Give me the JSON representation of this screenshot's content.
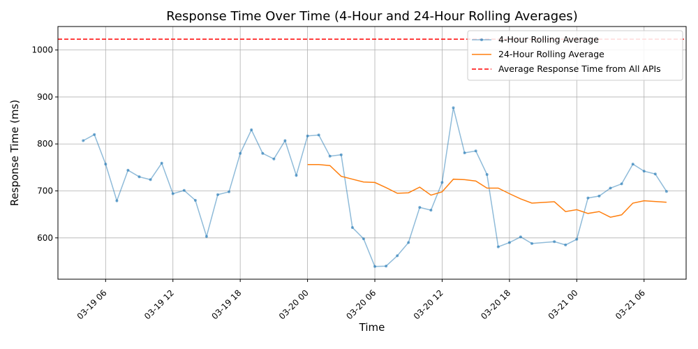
{
  "chart_data": {
    "type": "line",
    "title": "Response Time Over Time (4-Hour and 24-Hour Rolling Averages)",
    "xlabel": "Time",
    "ylabel": "Response Time (ms)",
    "x_ticks": [
      "03-19 06",
      "03-19 12",
      "03-19 18",
      "03-20 00",
      "03-20 06",
      "03-20 12",
      "03-20 18",
      "03-21 00",
      "03-21 06"
    ],
    "y_ticks": [
      600,
      700,
      800,
      900,
      1000
    ],
    "xlim": [
      "2024-03-19T01:45",
      "2024-03-21T09:45"
    ],
    "ylim": [
      512,
      1050
    ],
    "grid": true,
    "legend_position": "top-right",
    "series": [
      {
        "name": "4-Hour Rolling Average",
        "color": "#1f77b4",
        "style": "line-with-markers",
        "points": [
          [
            "2024-03-19T04:00",
            807
          ],
          [
            "2024-03-19T05:00",
            820
          ],
          [
            "2024-03-19T06:00",
            757
          ],
          [
            "2024-03-19T07:00",
            679
          ],
          [
            "2024-03-19T08:00",
            744
          ],
          [
            "2024-03-19T09:00",
            730
          ],
          [
            "2024-03-19T10:00",
            724
          ],
          [
            "2024-03-19T11:00",
            759
          ],
          [
            "2024-03-19T12:00",
            694
          ],
          [
            "2024-03-19T13:00",
            701
          ],
          [
            "2024-03-19T14:00",
            680
          ],
          [
            "2024-03-19T15:00",
            603
          ],
          [
            "2024-03-19T16:00",
            692
          ],
          [
            "2024-03-19T17:00",
            698
          ],
          [
            "2024-03-19T18:00",
            780
          ],
          [
            "2024-03-19T19:00",
            830
          ],
          [
            "2024-03-19T20:00",
            780
          ],
          [
            "2024-03-19T21:00",
            768
          ],
          [
            "2024-03-19T22:00",
            807
          ],
          [
            "2024-03-19T23:00",
            733
          ],
          [
            "2024-03-20T00:00",
            817
          ],
          [
            "2024-03-20T01:00",
            819
          ],
          [
            "2024-03-20T02:00",
            774
          ],
          [
            "2024-03-20T03:00",
            777
          ],
          [
            "2024-03-20T04:00",
            622
          ],
          [
            "2024-03-20T05:00",
            598
          ],
          [
            "2024-03-20T06:00",
            539
          ],
          [
            "2024-03-20T07:00",
            540
          ],
          [
            "2024-03-20T08:00",
            562
          ],
          [
            "2024-03-20T09:00",
            590
          ],
          [
            "2024-03-20T10:00",
            665
          ],
          [
            "2024-03-20T11:00",
            659
          ],
          [
            "2024-03-20T12:00",
            718
          ],
          [
            "2024-03-20T13:00",
            877
          ],
          [
            "2024-03-20T14:00",
            781
          ],
          [
            "2024-03-20T15:00",
            785
          ],
          [
            "2024-03-20T16:00",
            735
          ],
          [
            "2024-03-20T17:00",
            581
          ],
          [
            "2024-03-20T18:00",
            590
          ],
          [
            "2024-03-20T19:00",
            602
          ],
          [
            "2024-03-20T20:00",
            588
          ],
          [
            "2024-03-20T22:00",
            592
          ],
          [
            "2024-03-20T23:00",
            585
          ],
          [
            "2024-03-21T00:00",
            597
          ],
          [
            "2024-03-21T01:00",
            685
          ],
          [
            "2024-03-21T02:00",
            689
          ],
          [
            "2024-03-21T03:00",
            706
          ],
          [
            "2024-03-21T04:00",
            715
          ],
          [
            "2024-03-21T05:00",
            757
          ],
          [
            "2024-03-21T06:00",
            742
          ],
          [
            "2024-03-21T07:00",
            736
          ],
          [
            "2024-03-21T08:00",
            699
          ]
        ]
      },
      {
        "name": "24-Hour Rolling Average",
        "color": "#ff7f0e",
        "style": "line",
        "points": [
          [
            "2024-03-20T00:00",
            756
          ],
          [
            "2024-03-20T01:00",
            756
          ],
          [
            "2024-03-20T02:00",
            754
          ],
          [
            "2024-03-20T03:00",
            731
          ],
          [
            "2024-03-20T04:00",
            725
          ],
          [
            "2024-03-20T05:00",
            719
          ],
          [
            "2024-03-20T06:00",
            718
          ],
          [
            "2024-03-20T07:00",
            707
          ],
          [
            "2024-03-20T08:00",
            695
          ],
          [
            "2024-03-20T09:00",
            696
          ],
          [
            "2024-03-20T10:00",
            708
          ],
          [
            "2024-03-20T11:00",
            691
          ],
          [
            "2024-03-20T12:00",
            698
          ],
          [
            "2024-03-20T13:00",
            725
          ],
          [
            "2024-03-20T14:00",
            724
          ],
          [
            "2024-03-20T15:00",
            721
          ],
          [
            "2024-03-20T16:00",
            706
          ],
          [
            "2024-03-20T17:00",
            706
          ],
          [
            "2024-03-20T18:00",
            694
          ],
          [
            "2024-03-20T19:00",
            683
          ],
          [
            "2024-03-20T20:00",
            674
          ],
          [
            "2024-03-20T22:00",
            677
          ],
          [
            "2024-03-20T23:00",
            656
          ],
          [
            "2024-03-21T00:00",
            660
          ],
          [
            "2024-03-21T01:00",
            652
          ],
          [
            "2024-03-21T02:00",
            656
          ],
          [
            "2024-03-21T03:00",
            644
          ],
          [
            "2024-03-21T04:00",
            649
          ],
          [
            "2024-03-21T05:00",
            674
          ],
          [
            "2024-03-21T06:00",
            679
          ],
          [
            "2024-03-21T08:00",
            676
          ]
        ]
      }
    ],
    "reference_line": {
      "name": "Average Response Time from All APIs",
      "value": 1023,
      "color": "#ff0000",
      "style": "dashed"
    }
  }
}
